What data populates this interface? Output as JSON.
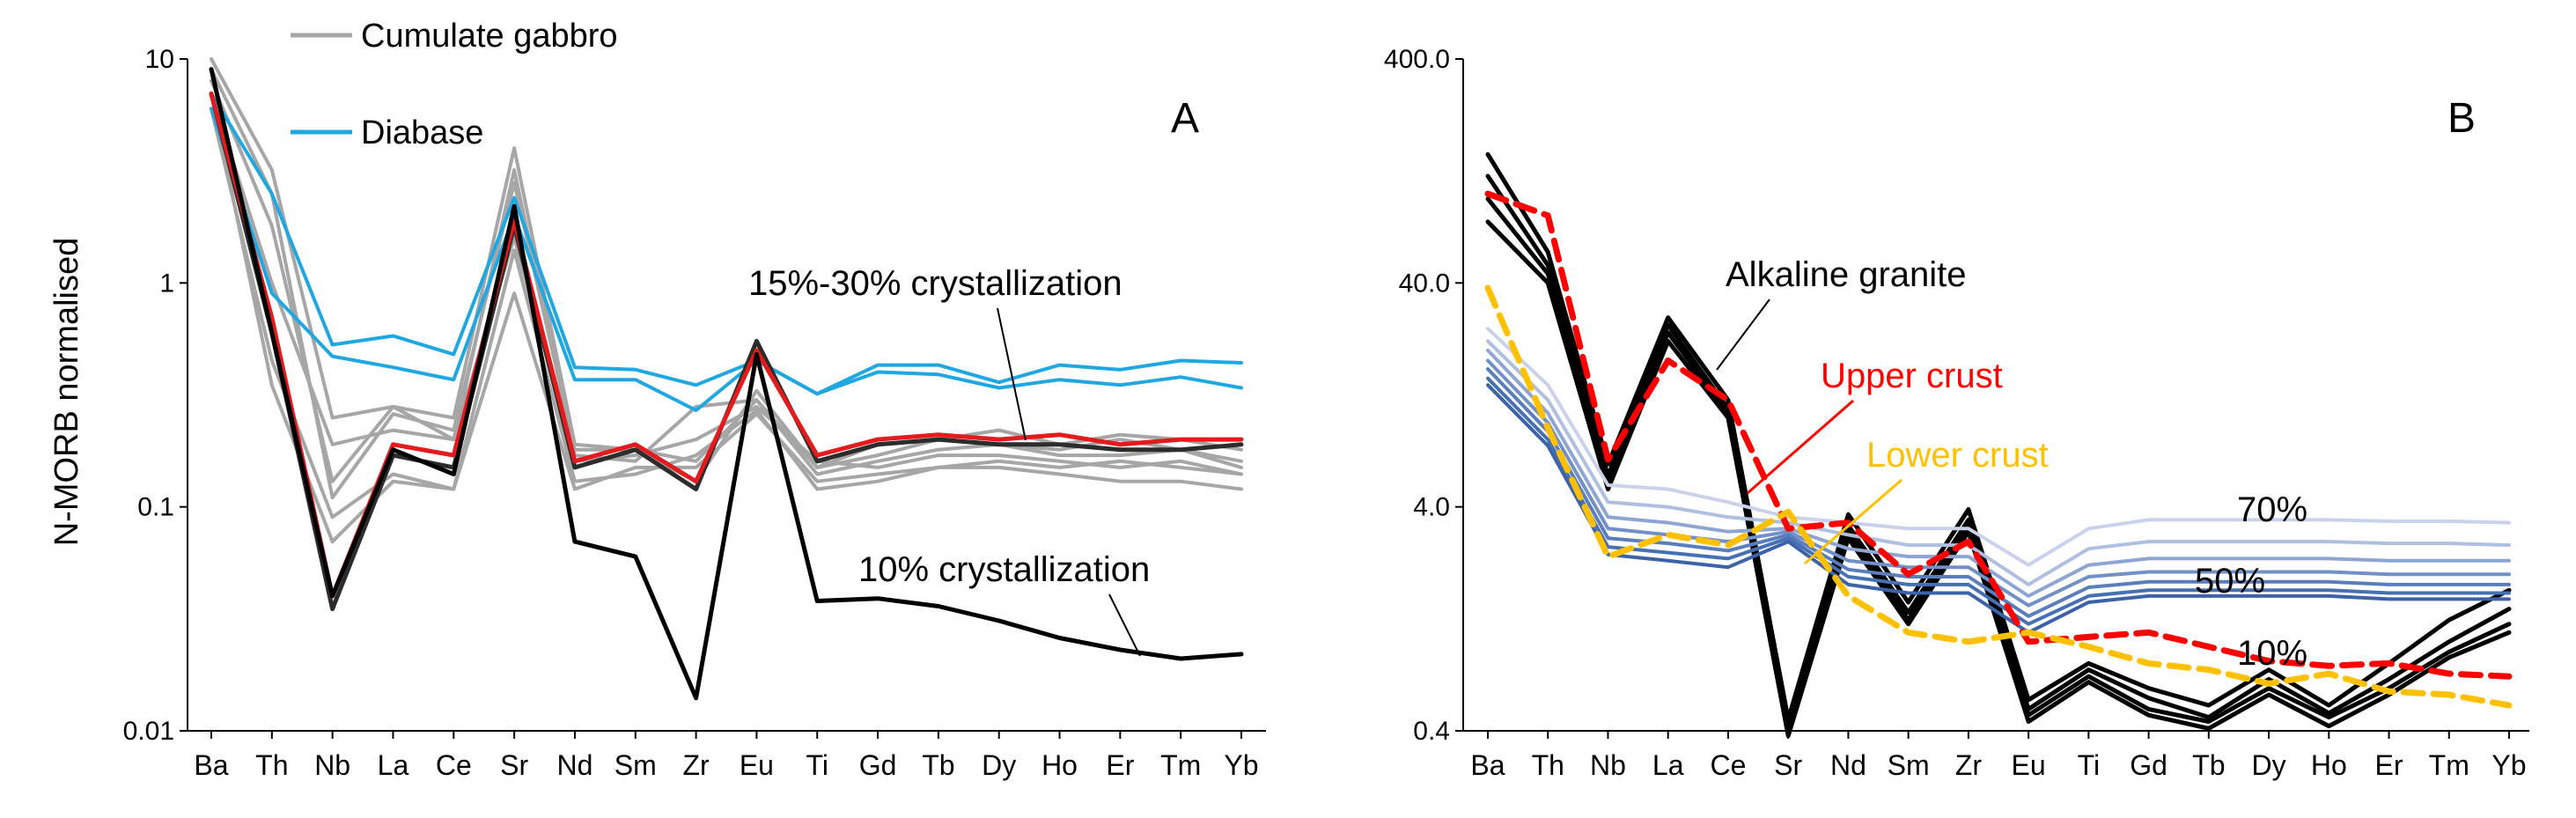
{
  "chart_data": [
    {
      "panel": "A",
      "type": "line",
      "yscale": "log",
      "ylim": [
        0.01,
        10
      ],
      "yticks": [
        0.01,
        0.1,
        1,
        10
      ],
      "ytick_labels": [
        "0.01",
        "0.1",
        "1",
        "10"
      ],
      "ylabel": "N-MORB normalised",
      "categories": [
        "Ba",
        "Th",
        "Nb",
        "La",
        "Ce",
        "Sr",
        "Nd",
        "Sm",
        "Zr",
        "Eu",
        "Ti",
        "Gd",
        "Tb",
        "Dy",
        "Ho",
        "Er",
        "Tm",
        "Yb"
      ],
      "legend": [
        {
          "label": "Cumulate gabbro",
          "color": "#a6a6a6"
        },
        {
          "label": "Diabase",
          "color": "#1ea7e1"
        }
      ],
      "annotations": [
        {
          "text": "15%-30% crystallization",
          "target_category": "Dy",
          "target_value": 0.2
        },
        {
          "text": "10% crystallization",
          "target_category": "Dy",
          "target_value": 0.03
        }
      ],
      "series": [
        {
          "name": "Cumulate gabbro 1",
          "color": "#a6a6a6",
          "values": [
            10,
            3.2,
            0.25,
            0.28,
            0.25,
            4.0,
            0.19,
            0.18,
            0.16,
            0.3,
            0.15,
            0.17,
            0.2,
            0.22,
            0.19,
            0.21,
            0.2,
            0.18
          ]
        },
        {
          "name": "Cumulate gabbro 2",
          "color": "#a6a6a6",
          "values": [
            8,
            1.8,
            0.13,
            0.28,
            0.2,
            3.2,
            0.17,
            0.16,
            0.28,
            0.3,
            0.14,
            0.16,
            0.18,
            0.19,
            0.18,
            0.2,
            0.18,
            0.16
          ]
        },
        {
          "name": "Cumulate gabbro 3",
          "color": "#a6a6a6",
          "values": [
            7,
            0.35,
            0.07,
            0.13,
            0.12,
            1.4,
            0.13,
            0.14,
            0.17,
            0.27,
            0.12,
            0.13,
            0.15,
            0.15,
            0.14,
            0.13,
            0.13,
            0.12
          ]
        },
        {
          "name": "Cumulate gabbro 4",
          "color": "#a6a6a6",
          "values": [
            6,
            0.45,
            0.09,
            0.14,
            0.12,
            0.9,
            0.12,
            0.15,
            0.15,
            0.26,
            0.13,
            0.14,
            0.15,
            0.16,
            0.15,
            0.16,
            0.15,
            0.14
          ]
        },
        {
          "name": "Cumulate gabbro 5",
          "color": "#a6a6a6",
          "values": [
            9,
            2.5,
            0.11,
            0.26,
            0.22,
            2.8,
            0.18,
            0.18,
            0.13,
            0.33,
            0.15,
            0.19,
            0.2,
            0.19,
            0.17,
            0.17,
            0.18,
            0.15
          ]
        },
        {
          "name": "Cumulate gabbro 6",
          "color": "#a6a6a6",
          "values": [
            7,
            1.0,
            0.19,
            0.22,
            0.2,
            1.6,
            0.16,
            0.17,
            0.2,
            0.28,
            0.16,
            0.15,
            0.17,
            0.17,
            0.16,
            0.15,
            0.16,
            0.14
          ]
        },
        {
          "name": "Diabase 1",
          "color": "#1ea7e1",
          "values": [
            7,
            2.5,
            0.53,
            0.58,
            0.48,
            2.4,
            0.42,
            0.41,
            0.35,
            0.45,
            0.32,
            0.43,
            0.43,
            0.36,
            0.43,
            0.41,
            0.45,
            0.44
          ]
        },
        {
          "name": "Diabase 2",
          "color": "#1ea7e1",
          "values": [
            6,
            0.9,
            0.47,
            0.42,
            0.37,
            2.0,
            0.37,
            0.37,
            0.27,
            0.45,
            0.32,
            0.4,
            0.39,
            0.34,
            0.37,
            0.35,
            0.38,
            0.34
          ]
        },
        {
          "name": "Model 15% crystallization",
          "color": "#2c2c2c",
          "values": [
            7,
            0.6,
            0.035,
            0.17,
            0.15,
            1.8,
            0.15,
            0.18,
            0.12,
            0.55,
            0.16,
            0.19,
            0.2,
            0.19,
            0.19,
            0.18,
            0.18,
            0.19
          ]
        },
        {
          "name": "Model 30% crystallization",
          "color": "#e41a1c",
          "values": [
            7,
            0.7,
            0.04,
            0.19,
            0.17,
            1.9,
            0.16,
            0.19,
            0.13,
            0.5,
            0.17,
            0.2,
            0.21,
            0.2,
            0.21,
            0.19,
            0.2,
            0.2
          ]
        },
        {
          "name": "Model 10% crystallization",
          "color": "#000000",
          "values": [
            9,
            0.6,
            0.04,
            0.18,
            0.14,
            2.2,
            0.07,
            0.06,
            0.014,
            0.48,
            0.038,
            0.039,
            0.036,
            0.031,
            0.026,
            0.023,
            0.021,
            0.022
          ]
        }
      ]
    },
    {
      "panel": "B",
      "type": "line",
      "yscale": "log",
      "ylim": [
        0.4,
        400
      ],
      "yticks": [
        0.4,
        4,
        40,
        400
      ],
      "ytick_labels": [
        "0.4",
        "4.0",
        "40.0",
        "400.0"
      ],
      "categories": [
        "Ba",
        "Th",
        "Nb",
        "La",
        "Ce",
        "Sr",
        "Nd",
        "Sm",
        "Zr",
        "Eu",
        "Ti",
        "Gd",
        "Tb",
        "Dy",
        "Ho",
        "Er",
        "Tm",
        "Yb"
      ],
      "annotations": [
        {
          "text": "Alkaline granite",
          "target_category": "La",
          "target_value": 14
        },
        {
          "text": "Upper crust",
          "target_category": "Sr",
          "target_value": 5.6,
          "color": "#ff0000"
        },
        {
          "text": "Lower crust",
          "target_category": "Nd",
          "target_value": 3.0,
          "color": "#ffc000"
        },
        {
          "text": "70%",
          "color": "#000000"
        },
        {
          "text": "50%",
          "color": "#000000"
        },
        {
          "text": "10%",
          "color": "#000000"
        }
      ],
      "series": [
        {
          "name": "Alkaline granite 1",
          "color": "#000000",
          "values": [
            150,
            55,
            6.2,
            28,
            12,
            0.45,
            3.7,
            1.5,
            3.9,
            0.55,
            0.8,
            0.62,
            0.52,
            0.75,
            0.52,
            0.8,
            1.25,
            1.7
          ]
        },
        {
          "name": "Alkaline granite 2",
          "color": "#000000",
          "values": [
            120,
            48,
            5.5,
            26,
            11,
            0.42,
            3.3,
            1.35,
            3.5,
            0.5,
            0.75,
            0.56,
            0.46,
            0.68,
            0.48,
            0.68,
            1.0,
            1.4
          ]
        },
        {
          "name": "Alkaline granite 3",
          "color": "#000000",
          "values": [
            95,
            44,
            5.1,
            24,
            10.5,
            0.4,
            3.1,
            1.25,
            3.3,
            0.47,
            0.7,
            0.5,
            0.44,
            0.62,
            0.46,
            0.62,
            0.9,
            1.2
          ]
        },
        {
          "name": "Alkaline granite 4",
          "color": "#000000",
          "values": [
            75,
            40,
            4.8,
            22,
            10,
            0.38,
            2.9,
            1.2,
            3.1,
            0.44,
            0.66,
            0.47,
            0.41,
            0.58,
            0.42,
            0.58,
            0.85,
            1.1
          ]
        },
        {
          "name": "Model 70%",
          "color": "#c9d2ea",
          "values": [
            25,
            14,
            5.0,
            4.8,
            4.2,
            3.6,
            3.4,
            3.2,
            3.2,
            2.2,
            3.2,
            3.5,
            3.5,
            3.5,
            3.5,
            3.45,
            3.45,
            3.4
          ]
        },
        {
          "name": "Model 60%",
          "color": "#aebfe0",
          "values": [
            22,
            12,
            4.2,
            4.0,
            3.6,
            3.4,
            3.0,
            2.7,
            2.7,
            1.8,
            2.6,
            2.8,
            2.8,
            2.8,
            2.8,
            2.75,
            2.75,
            2.7
          ]
        },
        {
          "name": "Model 50%",
          "color": "#8ea5d4",
          "values": [
            20,
            10.5,
            3.6,
            3.4,
            3.1,
            3.2,
            2.6,
            2.4,
            2.4,
            1.6,
            2.2,
            2.35,
            2.35,
            2.35,
            2.35,
            2.3,
            2.3,
            2.3
          ]
        },
        {
          "name": "Model 40%",
          "color": "#7190c8",
          "values": [
            18,
            9.5,
            3.2,
            3.0,
            2.8,
            3.1,
            2.3,
            2.15,
            2.15,
            1.45,
            1.95,
            2.05,
            2.05,
            2.05,
            2.05,
            2.0,
            2.0,
            2.0
          ]
        },
        {
          "name": "Model 30%",
          "color": "#5a7dbd",
          "values": [
            16.5,
            8.7,
            2.9,
            2.75,
            2.55,
            3.0,
            2.1,
            1.95,
            1.95,
            1.3,
            1.75,
            1.85,
            1.85,
            1.85,
            1.85,
            1.8,
            1.8,
            1.8
          ]
        },
        {
          "name": "Model 20%",
          "color": "#4670b4",
          "values": [
            15,
            8.0,
            2.65,
            2.5,
            2.35,
            2.9,
            1.95,
            1.8,
            1.8,
            1.2,
            1.6,
            1.7,
            1.7,
            1.7,
            1.7,
            1.65,
            1.65,
            1.65
          ]
        },
        {
          "name": "Model 10%",
          "color": "#3c63a8",
          "values": [
            14,
            7.5,
            2.45,
            2.3,
            2.15,
            2.8,
            1.8,
            1.65,
            1.65,
            1.1,
            1.5,
            1.6,
            1.6,
            1.6,
            1.6,
            1.55,
            1.55,
            1.55
          ]
        },
        {
          "name": "Upper crust",
          "color": "#ff0000",
          "dashed": true,
          "values": [
            100,
            80,
            6.5,
            18,
            12,
            3.2,
            3.4,
            2.0,
            2.8,
            1.0,
            1.05,
            1.1,
            0.95,
            0.82,
            0.78,
            0.8,
            0.72,
            0.7
          ]
        },
        {
          "name": "Lower crust",
          "color": "#ffc000",
          "dashed": true,
          "values": [
            38,
            9.0,
            2.4,
            3.0,
            2.7,
            3.8,
            1.6,
            1.1,
            1.0,
            1.1,
            0.95,
            0.8,
            0.75,
            0.65,
            0.72,
            0.6,
            0.58,
            0.52
          ]
        }
      ]
    }
  ]
}
